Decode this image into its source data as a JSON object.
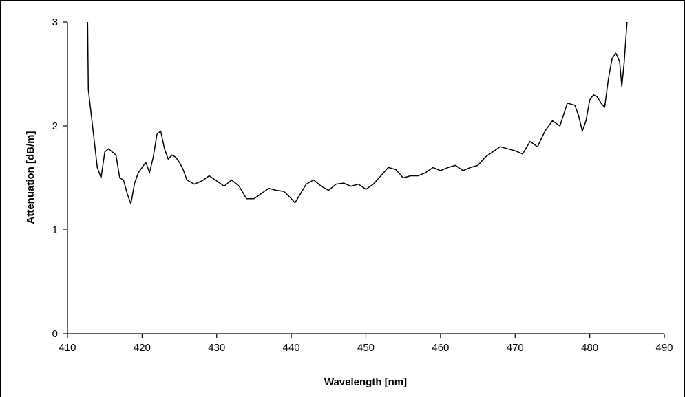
{
  "chart_data": {
    "type": "line",
    "title": "",
    "xlabel": "Wavelength [nm]",
    "ylabel": "Attenuation [dB/m]",
    "xlim": [
      410,
      490
    ],
    "ylim": [
      0,
      3
    ],
    "xticks": [
      410,
      420,
      430,
      440,
      450,
      460,
      470,
      480,
      490
    ],
    "yticks": [
      0,
      1,
      2,
      3
    ],
    "grid": false,
    "legend": "none",
    "line_color": "#000000",
    "series": [
      {
        "x": [
          412.7,
          412.8,
          413.2,
          413.6,
          414.0,
          414.5,
          415.0,
          415.5,
          416.0,
          416.5,
          417.0,
          417.5,
          418.0,
          418.5,
          419.0,
          419.5,
          420.0,
          420.5,
          421.0,
          421.5,
          422.0,
          422.5,
          423.0,
          423.5,
          424.0,
          424.5,
          425.0,
          425.5,
          426.0,
          427.0,
          428.0,
          429.0,
          430.0,
          431.0,
          432.0,
          433.0,
          434.0,
          435.0,
          436.0,
          437.0,
          438.0,
          439.0,
          440.0,
          440.5,
          441.0,
          442.0,
          443.0,
          444.0,
          445.0,
          446.0,
          447.0,
          448.0,
          449.0,
          450.0,
          451.0,
          452.0,
          453.0,
          454.0,
          455.0,
          456.0,
          457.0,
          458.0,
          459.0,
          460.0,
          461.0,
          462.0,
          463.0,
          464.0,
          465.0,
          466.0,
          467.0,
          468.0,
          469.0,
          470.0,
          471.0,
          472.0,
          473.0,
          474.0,
          475.0,
          476.0,
          477.0,
          478.0,
          478.5,
          479.0,
          479.5,
          480.0,
          480.5,
          481.0,
          481.5,
          482.0,
          482.5,
          483.0,
          483.5,
          484.0,
          484.3,
          484.6,
          485.0
        ],
        "y": [
          3.0,
          2.35,
          2.1,
          1.85,
          1.6,
          1.5,
          1.75,
          1.78,
          1.75,
          1.72,
          1.5,
          1.48,
          1.35,
          1.25,
          1.45,
          1.55,
          1.6,
          1.65,
          1.55,
          1.7,
          1.92,
          1.95,
          1.78,
          1.68,
          1.72,
          1.7,
          1.65,
          1.58,
          1.48,
          1.44,
          1.47,
          1.52,
          1.47,
          1.42,
          1.48,
          1.42,
          1.3,
          1.3,
          1.35,
          1.4,
          1.38,
          1.37,
          1.3,
          1.26,
          1.32,
          1.44,
          1.48,
          1.42,
          1.38,
          1.44,
          1.45,
          1.42,
          1.44,
          1.39,
          1.44,
          1.52,
          1.6,
          1.58,
          1.5,
          1.52,
          1.52,
          1.55,
          1.6,
          1.57,
          1.6,
          1.62,
          1.57,
          1.6,
          1.62,
          1.7,
          1.75,
          1.8,
          1.78,
          1.76,
          1.73,
          1.85,
          1.8,
          1.95,
          2.05,
          2.0,
          2.22,
          2.2,
          2.1,
          1.95,
          2.05,
          2.25,
          2.3,
          2.28,
          2.22,
          2.18,
          2.45,
          2.65,
          2.7,
          2.62,
          2.38,
          2.6,
          3.0
        ]
      }
    ]
  }
}
